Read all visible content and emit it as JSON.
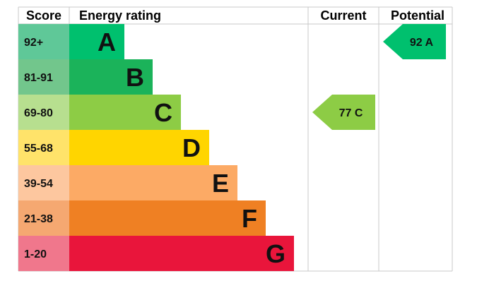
{
  "chart_data": {
    "type": "table",
    "title": "",
    "headers": {
      "score": "Score",
      "rating": "Energy rating",
      "current": "Current",
      "potential": "Potential"
    },
    "bands": [
      {
        "letter": "A",
        "range": "92+",
        "bar_color": "#00c06e",
        "score_color": "#5fc898"
      },
      {
        "letter": "B",
        "range": "81-91",
        "bar_color": "#1bb35a",
        "score_color": "#72c68c"
      },
      {
        "letter": "C",
        "range": "69-80",
        "bar_color": "#8dcc45",
        "score_color": "#b7df8f"
      },
      {
        "letter": "D",
        "range": "55-68",
        "bar_color": "#ffd500",
        "score_color": "#ffe36a"
      },
      {
        "letter": "E",
        "range": "39-54",
        "bar_color": "#fcaa65",
        "score_color": "#fdc79f"
      },
      {
        "letter": "F",
        "range": "21-38",
        "bar_color": "#ef8023",
        "score_color": "#f5a871"
      },
      {
        "letter": "G",
        "range": "1-20",
        "bar_color": "#e9153b",
        "score_color": "#f0778c"
      }
    ],
    "current": {
      "value": 77,
      "band": "C",
      "label": "77 C",
      "color": "#8dcc45"
    },
    "potential": {
      "value": 92,
      "band": "A",
      "label": "92 A",
      "color": "#00c06e"
    }
  }
}
